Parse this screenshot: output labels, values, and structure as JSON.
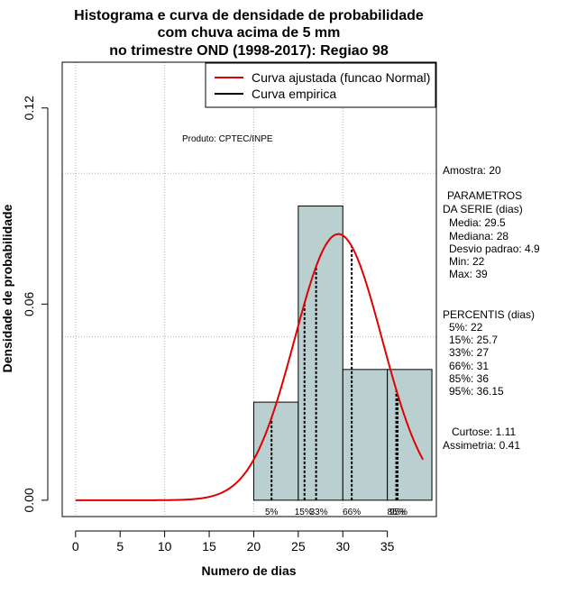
{
  "chart_data": {
    "type": "histogram",
    "title_lines": [
      "Histograma e curva de densidade de probabilidade",
      "com chuva acima de 5 mm",
      "no trimestre OND (1998-2017): Regiao 98"
    ],
    "xlabel": "Numero de dias",
    "ylabel": "Densidade de probabilidade",
    "xlim": [
      -1.5,
      40.5
    ],
    "ylim": [
      -0.005,
      0.134
    ],
    "x_ticks": [
      0,
      5,
      10,
      15,
      20,
      25,
      30,
      35
    ],
    "y_ticks": [
      0.0,
      0.06,
      0.12
    ],
    "y_tick_labels": [
      "0.00",
      "0.06",
      "0.12"
    ],
    "grid_x": [
      0,
      10,
      20,
      30
    ],
    "grid_y": [
      0.05,
      0.1
    ],
    "bins": [
      {
        "start": 20,
        "end": 25,
        "density": 0.03
      },
      {
        "start": 25,
        "end": 30,
        "density": 0.09
      },
      {
        "start": 30,
        "end": 35,
        "density": 0.04
      },
      {
        "start": 35,
        "end": 40,
        "density": 0.04
      }
    ],
    "bar_color": "#b9cfd0",
    "normal_curve": {
      "mean": 29.5,
      "sd": 4.9,
      "x_from": 0,
      "x_to": 39,
      "color": "#e00000"
    },
    "percentile_lines": [
      {
        "label": "5%",
        "value": 22
      },
      {
        "label": "15%",
        "value": 25.7
      },
      {
        "label": "33%",
        "value": 27
      },
      {
        "label": "66%",
        "value": 31
      },
      {
        "label": "85%",
        "value": 36
      },
      {
        "label": "95%",
        "value": 36.15
      }
    ],
    "legend": [
      {
        "label": "Curva ajustada (funcao Normal)",
        "color": "#e00000"
      },
      {
        "label": "Curva empirica",
        "color": "#000000"
      }
    ],
    "legend_position": "top-right",
    "product_label": "Produto: CPTEC/INPE",
    "stats": {
      "amostra": "Amostra: 20",
      "params_header_1": "PARAMETROS",
      "params_header_2": "DA SERIE (dias)",
      "media": "Media: 29.5",
      "mediana": "Mediana: 28",
      "desvio": "Desvio padrao: 4.9",
      "min": "Min: 22",
      "max": "Max: 39",
      "percentis_header": "PERCENTIS (dias)",
      "p5": "5%: 22",
      "p15": "15%: 25.7",
      "p33": "33%: 27",
      "p66": "66%: 31",
      "p85": "85%: 36",
      "p95": "95%: 36.15",
      "curtose": "Curtose: 1.11",
      "assimetria": "Assimetria: 0.41"
    }
  }
}
